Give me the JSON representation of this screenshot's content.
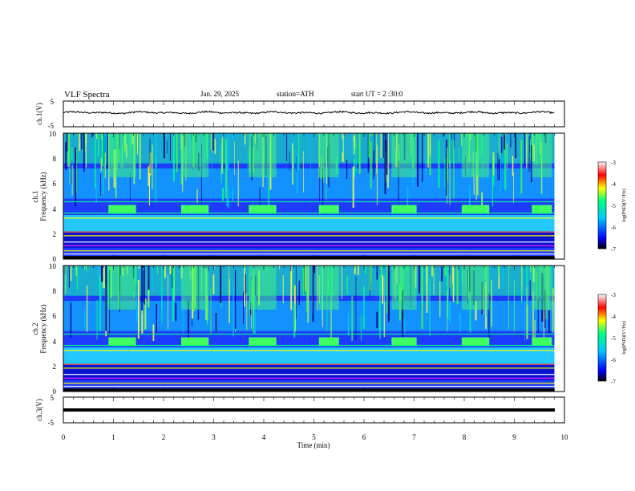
{
  "header": {
    "title": "VLF Spectra",
    "date": "Jan. 29, 2025",
    "station": "station=ATH",
    "start": "start UT =  2 :30:0"
  },
  "colors": {
    "background": "#ffffff",
    "axes": "#000000",
    "colormap": [
      "#000000",
      "#0000ff",
      "#00c8ff",
      "#00ff80",
      "#ffff00",
      "#ff0000",
      "#ffffff"
    ]
  },
  "chart_data": [
    {
      "type": "line",
      "ylabel": "ch.1(V)",
      "ylim": [
        -5,
        5
      ],
      "yticks": [
        "5",
        "-5"
      ],
      "xlim": [
        0,
        10
      ],
      "description_values": {
        "mean_level_V": 0.5,
        "noise_span_V": 0.6
      }
    },
    {
      "type": "heatmap",
      "ylabel_channel": "ch.1",
      "ylabel": "Frequency (kHz)",
      "ylim": [
        0,
        10
      ],
      "yticks": [
        "0",
        "2",
        "4",
        "6",
        "8",
        "10"
      ],
      "xlim": [
        0,
        10
      ],
      "bursts_min": [
        [
          0.9,
          1.45
        ],
        [
          2.35,
          2.9
        ],
        [
          3.7,
          4.25
        ],
        [
          5.1,
          5.5
        ],
        [
          6.55,
          7.05
        ],
        [
          7.95,
          8.5
        ],
        [
          9.35,
          9.75
        ]
      ],
      "colorbar": {
        "label": "log(PSD)(V²/Hz)",
        "range": [
          -7,
          -3
        ],
        "ticks": [
          "-3",
          "-4",
          "-5",
          "-6",
          "-7"
        ]
      }
    },
    {
      "type": "heatmap",
      "ylabel_channel": "ch.2",
      "ylabel": "Frequency (kHz)",
      "ylim": [
        0,
        10
      ],
      "yticks": [
        "0",
        "2",
        "4",
        "6",
        "8",
        "10"
      ],
      "xlim": [
        0,
        10
      ],
      "bursts_min": [
        [
          0.9,
          1.45
        ],
        [
          2.35,
          2.9
        ],
        [
          3.7,
          4.25
        ],
        [
          5.1,
          5.5
        ],
        [
          6.55,
          7.05
        ],
        [
          7.95,
          8.5
        ],
        [
          9.35,
          9.75
        ]
      ],
      "colorbar": {
        "label": "log(PSD)(V²/Hz)",
        "range": [
          -7,
          -3
        ],
        "ticks": [
          "-3",
          "-4",
          "-5",
          "-6",
          "-7"
        ]
      }
    },
    {
      "type": "line",
      "ylabel": "ch.3(V)",
      "ylim": [
        -5,
        5
      ],
      "yticks": [
        "5",
        "-5"
      ],
      "xlim": [
        0,
        10
      ],
      "description_values": {
        "mean_level_V": -0.5
      }
    }
  ],
  "xaxis": {
    "label": "Time (min)",
    "ticks": [
      "0",
      "1",
      "2",
      "3",
      "4",
      "5",
      "6",
      "7",
      "8",
      "9",
      "10"
    ],
    "data_end_min": 9.8
  }
}
